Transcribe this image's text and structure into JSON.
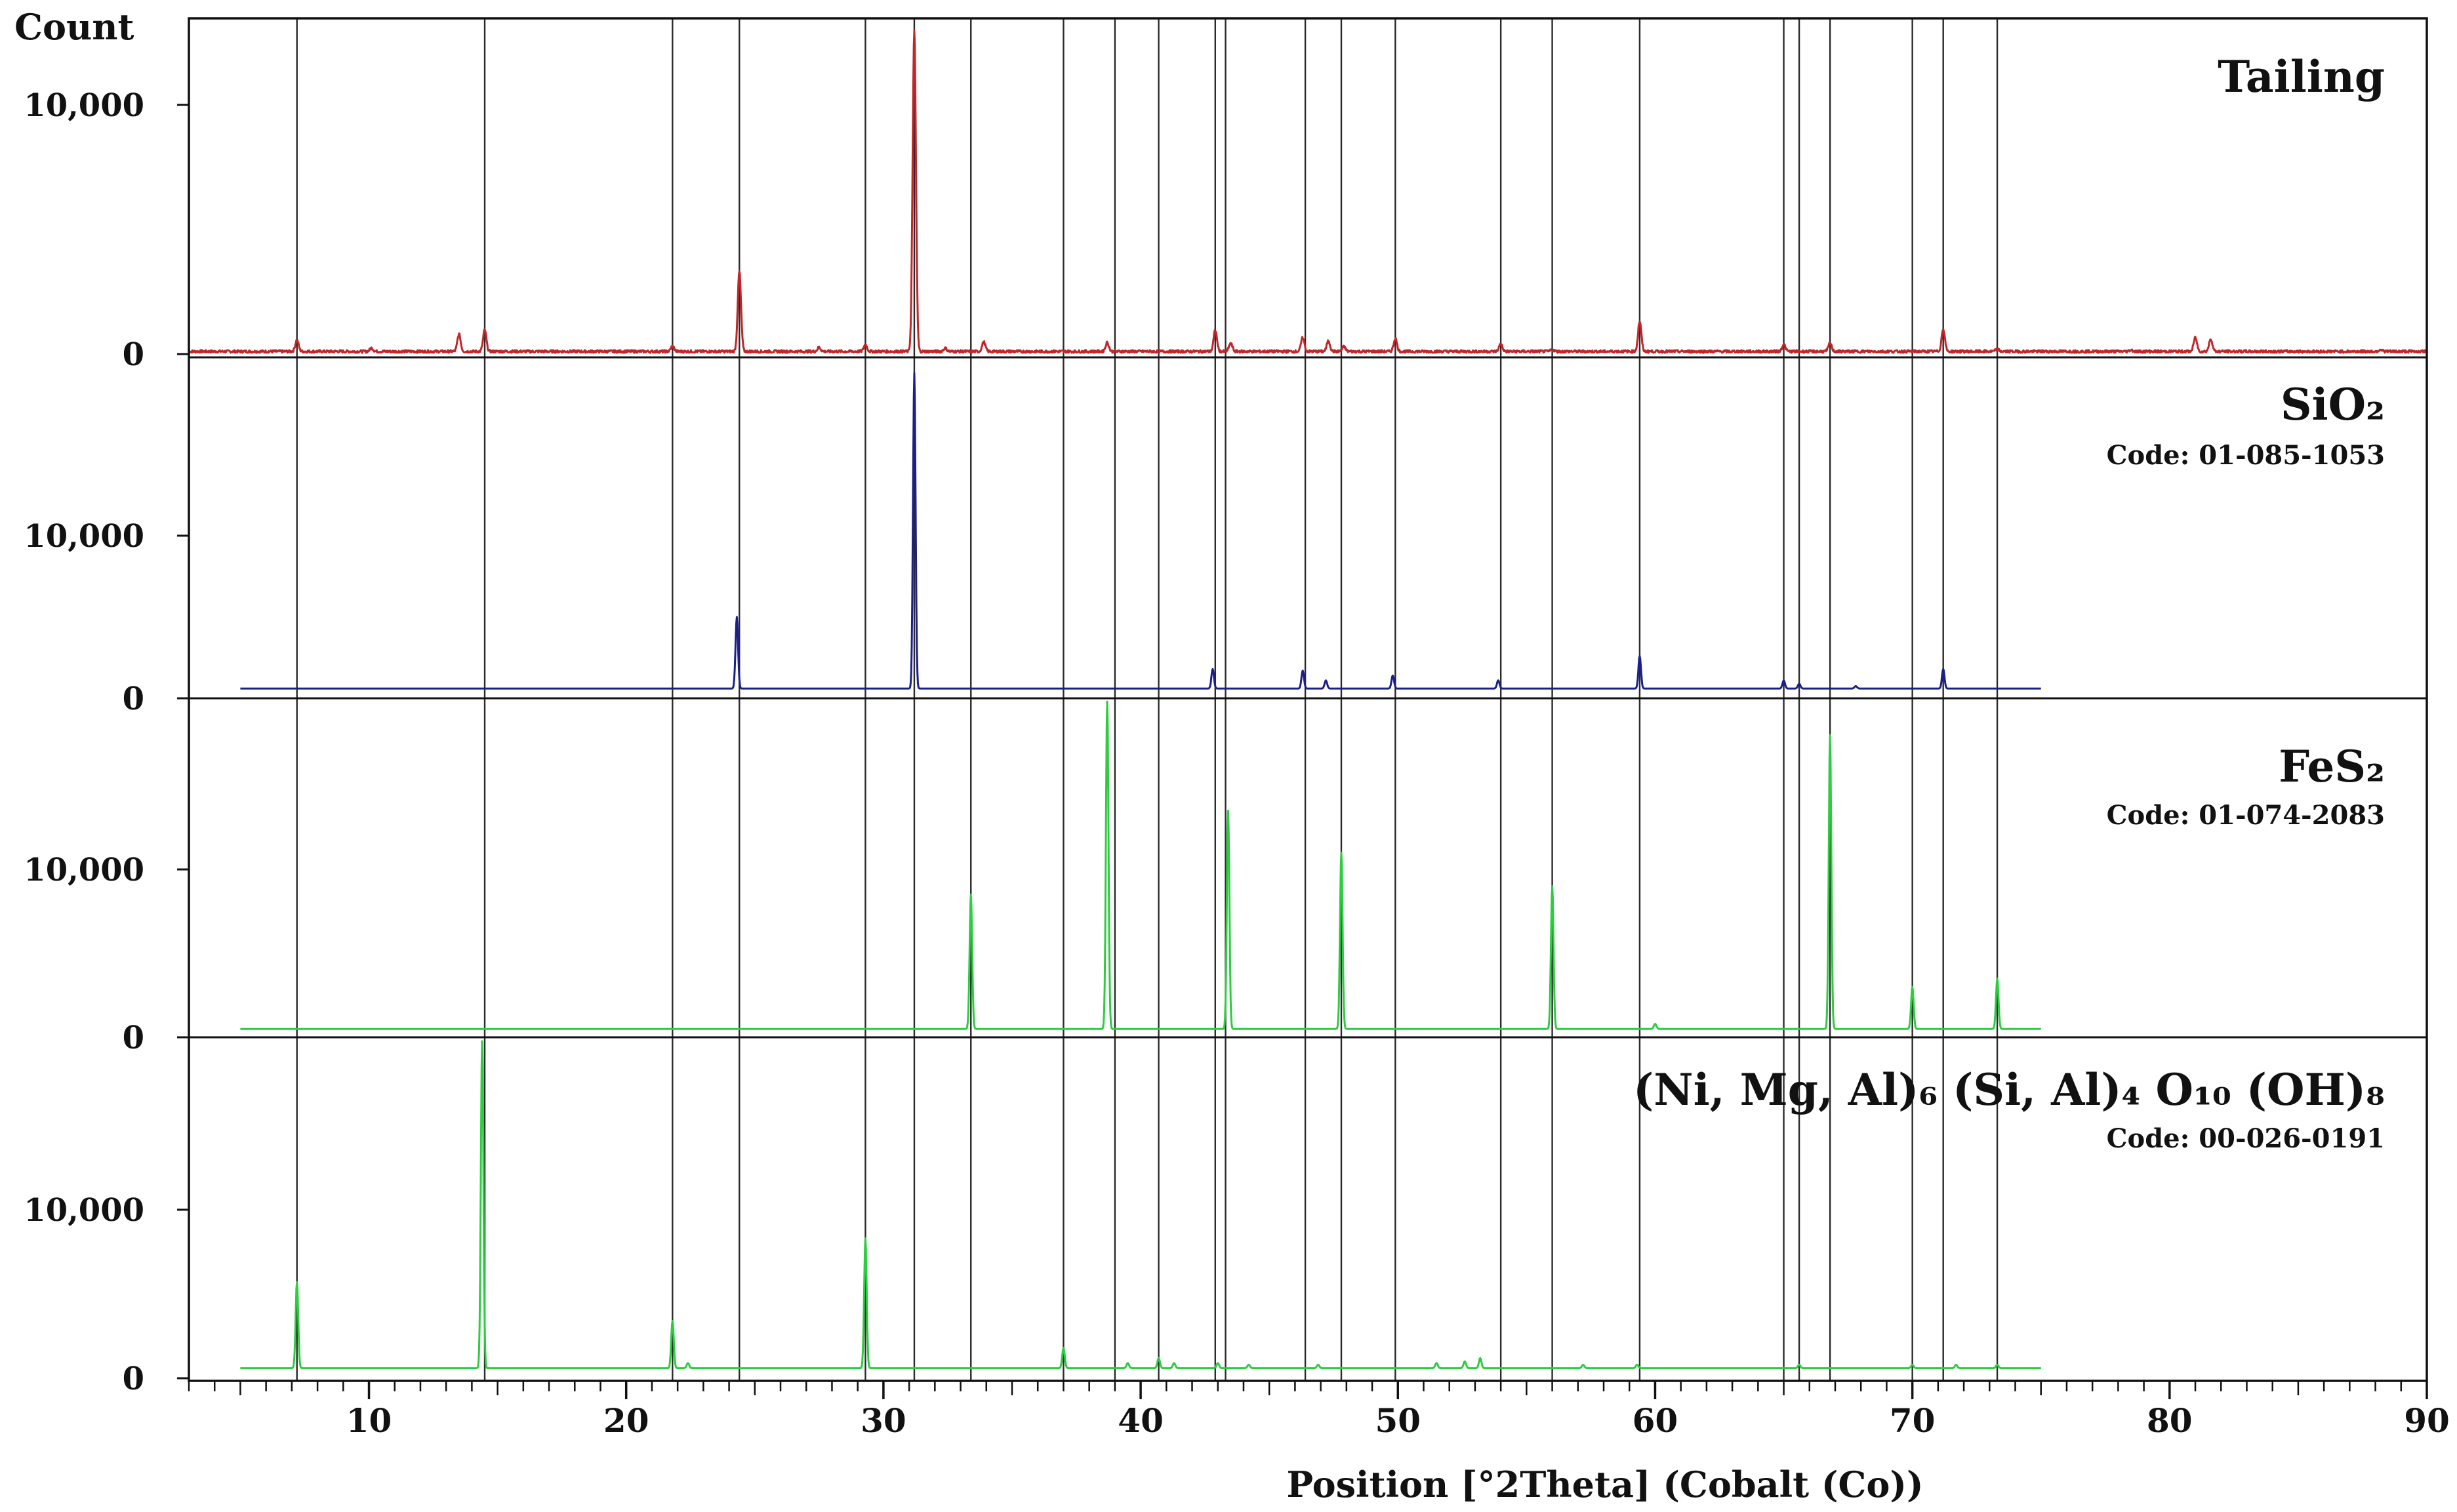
{
  "chart_data": {
    "type": "line",
    "xlabel": "Position [°2Theta] (Cobalt (Co))",
    "ylabel": "Count",
    "xlim": [
      3,
      90
    ],
    "x_ticks": [
      10,
      20,
      30,
      40,
      50,
      60,
      70,
      80,
      90
    ],
    "x_tick_labels": [
      "10",
      "20",
      "30",
      "40",
      "50",
      "60",
      "70",
      "80",
      "90"
    ],
    "reference_lines": [
      7.2,
      14.5,
      21.8,
      24.4,
      29.3,
      31.2,
      33.4,
      37.0,
      39.0,
      40.7,
      42.9,
      43.3,
      46.4,
      47.8,
      49.9,
      54.0,
      56.0,
      59.4,
      65.0,
      65.6,
      66.8,
      70.0,
      71.2,
      73.3
    ],
    "panels": [
      {
        "name": "Tailing",
        "code": "",
        "color": "#c0262a",
        "y_ticks": [
          0,
          10000
        ],
        "y_tick_labels": [
          "0",
          "10,000"
        ],
        "ylim": [
          0,
          13000
        ],
        "x_range": [
          3,
          90
        ],
        "baseline": 90,
        "peaks": [
          {
            "x": 7.2,
            "y": 550
          },
          {
            "x": 10.1,
            "y": 230
          },
          {
            "x": 13.5,
            "y": 780
          },
          {
            "x": 14.5,
            "y": 950
          },
          {
            "x": 21.8,
            "y": 300
          },
          {
            "x": 24.4,
            "y": 3300
          },
          {
            "x": 27.5,
            "y": 250
          },
          {
            "x": 29.3,
            "y": 370
          },
          {
            "x": 31.2,
            "y": 13000
          },
          {
            "x": 32.4,
            "y": 220
          },
          {
            "x": 33.9,
            "y": 470
          },
          {
            "x": 38.7,
            "y": 450
          },
          {
            "x": 42.9,
            "y": 950
          },
          {
            "x": 43.5,
            "y": 420
          },
          {
            "x": 46.3,
            "y": 650
          },
          {
            "x": 47.3,
            "y": 520
          },
          {
            "x": 47.9,
            "y": 280
          },
          {
            "x": 49.9,
            "y": 620
          },
          {
            "x": 54.0,
            "y": 400
          },
          {
            "x": 56.0,
            "y": 160
          },
          {
            "x": 59.4,
            "y": 1300
          },
          {
            "x": 65.0,
            "y": 380
          },
          {
            "x": 66.8,
            "y": 420
          },
          {
            "x": 71.2,
            "y": 1000
          },
          {
            "x": 73.3,
            "y": 180
          },
          {
            "x": 78.5,
            "y": 150
          },
          {
            "x": 81.0,
            "y": 650
          },
          {
            "x": 81.6,
            "y": 600
          },
          {
            "x": 88.2,
            "y": 170
          }
        ]
      },
      {
        "name": "SiO₂",
        "code": "Code: 01-085-1053",
        "color": "#1b1f8a",
        "y_ticks": [
          0,
          10000
        ],
        "y_tick_labels": [
          "0",
          "10,000"
        ],
        "ylim": [
          0,
          20000
        ],
        "x_range": [
          5,
          75
        ],
        "baseline": 600,
        "peaks": [
          {
            "x": 24.3,
            "y": 5000
          },
          {
            "x": 31.2,
            "y": 20000
          },
          {
            "x": 42.8,
            "y": 1800
          },
          {
            "x": 46.3,
            "y": 1700
          },
          {
            "x": 47.2,
            "y": 1100
          },
          {
            "x": 49.8,
            "y": 1400
          },
          {
            "x": 53.9,
            "y": 1100
          },
          {
            "x": 59.4,
            "y": 2600
          },
          {
            "x": 65.0,
            "y": 1100
          },
          {
            "x": 65.6,
            "y": 900
          },
          {
            "x": 67.8,
            "y": 750
          },
          {
            "x": 71.2,
            "y": 1800
          }
        ]
      },
      {
        "name": "FeS₂",
        "code": "Code: 01-074-2083",
        "color": "#2ecc40",
        "y_ticks": [
          0,
          10000
        ],
        "y_tick_labels": [
          "0",
          "10,000"
        ],
        "ylim": [
          0,
          20000
        ],
        "x_range": [
          5,
          75
        ],
        "baseline": 500,
        "peaks": [
          {
            "x": 33.4,
            "y": 8500
          },
          {
            "x": 38.7,
            "y": 20000
          },
          {
            "x": 43.4,
            "y": 13500
          },
          {
            "x": 47.8,
            "y": 11000
          },
          {
            "x": 56.0,
            "y": 9000
          },
          {
            "x": 60.0,
            "y": 800
          },
          {
            "x": 66.8,
            "y": 18000
          },
          {
            "x": 70.0,
            "y": 3000
          },
          {
            "x": 73.3,
            "y": 3500
          }
        ]
      },
      {
        "name": "(Ni, Mg, Al)₆ (Si, Al)₄ O₁₀ (OH)₈",
        "code": "Code: 00-026-0191",
        "color": "#2ecc40",
        "y_ticks": [
          0,
          10000
        ],
        "y_tick_labels": [
          "0",
          "10,000"
        ],
        "ylim": [
          0,
          20000
        ],
        "x_range": [
          5,
          75
        ],
        "baseline": 600,
        "peaks": [
          {
            "x": 7.2,
            "y": 5700
          },
          {
            "x": 14.4,
            "y": 20000
          },
          {
            "x": 21.8,
            "y": 3400
          },
          {
            "x": 22.4,
            "y": 900
          },
          {
            "x": 29.3,
            "y": 8300
          },
          {
            "x": 37.0,
            "y": 1800
          },
          {
            "x": 39.5,
            "y": 900
          },
          {
            "x": 40.7,
            "y": 1200
          },
          {
            "x": 41.3,
            "y": 900
          },
          {
            "x": 43.0,
            "y": 900
          },
          {
            "x": 44.2,
            "y": 800
          },
          {
            "x": 46.9,
            "y": 800
          },
          {
            "x": 51.5,
            "y": 900
          },
          {
            "x": 52.6,
            "y": 1000
          },
          {
            "x": 53.2,
            "y": 1200
          },
          {
            "x": 57.2,
            "y": 800
          },
          {
            "x": 59.3,
            "y": 800
          },
          {
            "x": 65.6,
            "y": 800
          },
          {
            "x": 70.0,
            "y": 800
          },
          {
            "x": 71.7,
            "y": 800
          },
          {
            "x": 73.3,
            "y": 800
          }
        ]
      }
    ]
  }
}
